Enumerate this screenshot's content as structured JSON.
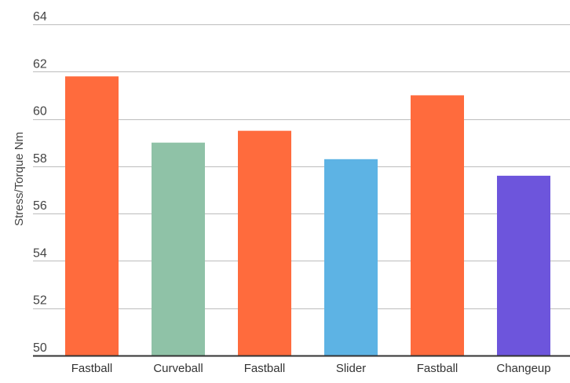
{
  "chart_data": {
    "type": "bar",
    "title": "",
    "xlabel": "",
    "ylabel": "Stress/Torque Nm",
    "ylim": [
      50,
      64
    ],
    "yticks": [
      50,
      52,
      54,
      56,
      58,
      60,
      62,
      64
    ],
    "grid": true,
    "legend": "none",
    "categories": [
      "Fastball",
      "Curveball",
      "Fastball",
      "Slider",
      "Fastball",
      "Changeup"
    ],
    "values": [
      61.8,
      59.0,
      59.5,
      58.3,
      61.0,
      57.6
    ],
    "colors": [
      "#ff6b3d",
      "#8fc2a7",
      "#ff6b3d",
      "#5db3e4",
      "#ff6b3d",
      "#6d55dc"
    ]
  }
}
